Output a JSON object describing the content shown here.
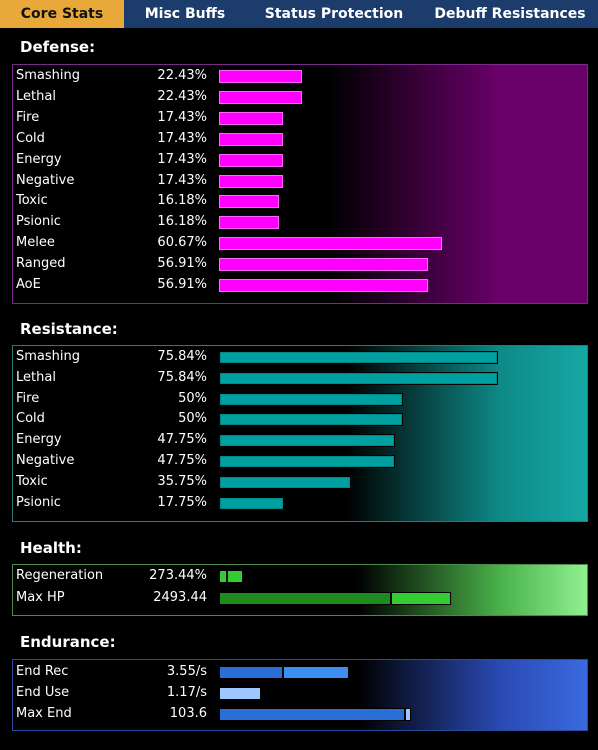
{
  "tabs": [
    "Core Stats",
    "Misc Buffs",
    "Status Protection",
    "Debuff Resistances"
  ],
  "sections": {
    "defense": {
      "title": "Defense:",
      "color": "#ff00ff",
      "rows": [
        {
          "label": "Smashing",
          "value": "22.43%",
          "pct": 22.43
        },
        {
          "label": "Lethal",
          "value": "22.43%",
          "pct": 22.43
        },
        {
          "label": "Fire",
          "value": "17.43%",
          "pct": 17.43
        },
        {
          "label": "Cold",
          "value": "17.43%",
          "pct": 17.43
        },
        {
          "label": "Energy",
          "value": "17.43%",
          "pct": 17.43
        },
        {
          "label": "Negative",
          "value": "17.43%",
          "pct": 17.43
        },
        {
          "label": "Toxic",
          "value": "16.18%",
          "pct": 16.18
        },
        {
          "label": "Psionic",
          "value": "16.18%",
          "pct": 16.18
        },
        {
          "label": "Melee",
          "value": "60.67%",
          "pct": 60.67
        },
        {
          "label": "Ranged",
          "value": "56.91%",
          "pct": 56.91
        },
        {
          "label": "AoE",
          "value": "56.91%",
          "pct": 56.91
        }
      ]
    },
    "resistance": {
      "title": "Resistance:",
      "color": "#00a0a0",
      "rows": [
        {
          "label": "Smashing",
          "value": "75.84%",
          "pct": 75.84
        },
        {
          "label": "Lethal",
          "value": "75.84%",
          "pct": 75.84
        },
        {
          "label": "Fire",
          "value": "50%",
          "pct": 50
        },
        {
          "label": "Cold",
          "value": "50%",
          "pct": 50
        },
        {
          "label": "Energy",
          "value": "47.75%",
          "pct": 47.75
        },
        {
          "label": "Negative",
          "value": "47.75%",
          "pct": 47.75
        },
        {
          "label": "Toxic",
          "value": "35.75%",
          "pct": 35.75
        },
        {
          "label": "Psionic",
          "value": "17.75%",
          "pct": 17.75
        }
      ]
    },
    "health": {
      "title": "Health:",
      "color": "#33cc33",
      "rows": [
        {
          "label": "Regeneration",
          "value": "273.44%"
        },
        {
          "label": "Max HP",
          "value": "2493.44"
        }
      ]
    },
    "endurance": {
      "title": "Endurance:",
      "color": "#3a6fd8",
      "rows": [
        {
          "label": "End Rec",
          "value": "3.55/s"
        },
        {
          "label": "End Use",
          "value": "1.17/s"
        },
        {
          "label": "Max End",
          "value": "103.6"
        }
      ]
    }
  }
}
